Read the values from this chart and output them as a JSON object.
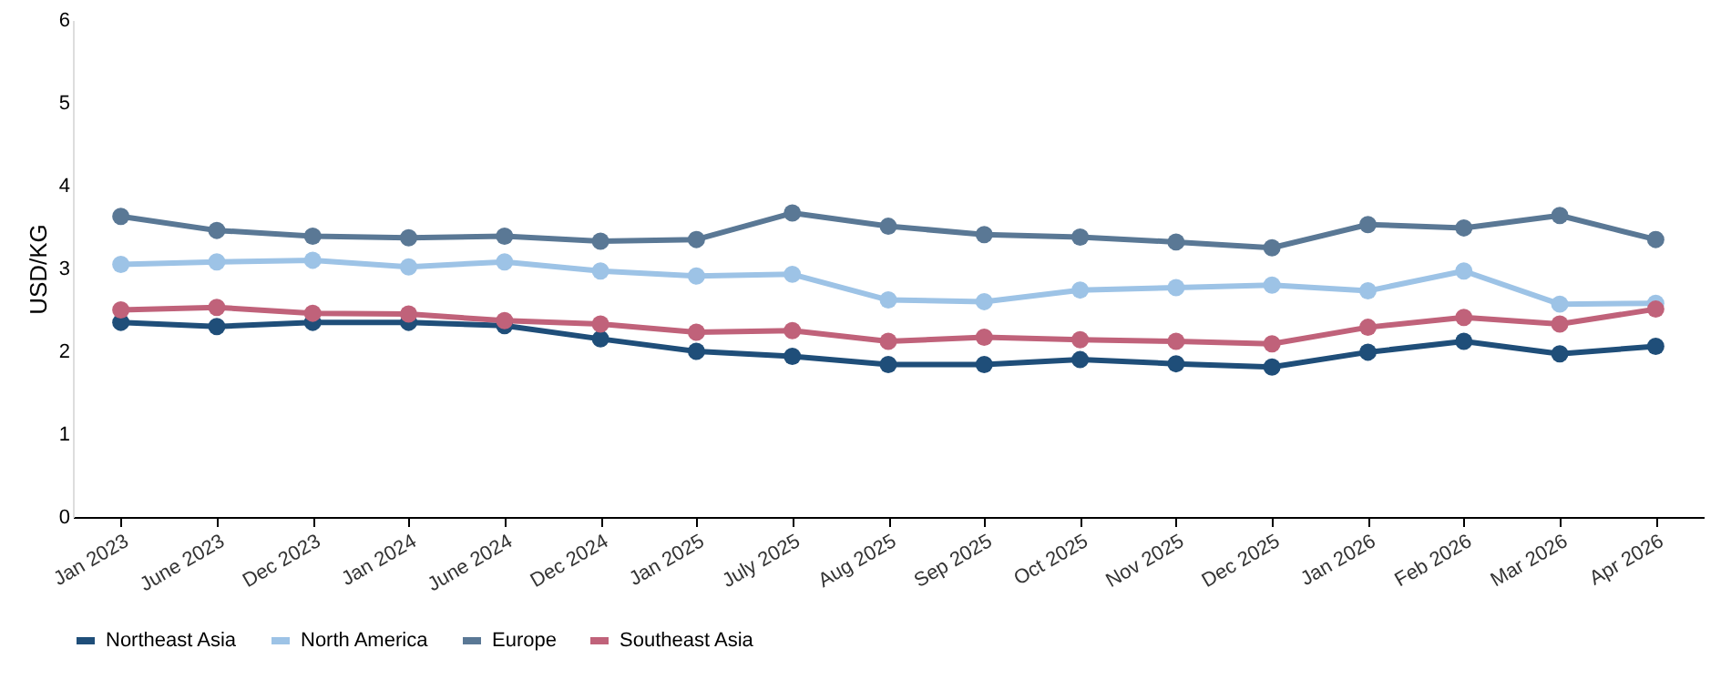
{
  "chart_data": {
    "type": "line",
    "ylabel": "USD/KG",
    "categories": [
      "Jan 2023",
      "June 2023",
      "Dec 2023",
      "Jan 2024",
      "June 2024",
      "Dec 2024",
      "Jan 2025",
      "July 2025",
      "Aug 2025",
      "Sep 2025",
      "Oct 2025",
      "Nov 2025",
      "Dec 2025",
      "Jan 2026",
      "Feb 2026",
      "Mar 2026",
      "Apr 2026"
    ],
    "series": [
      {
        "name": "Northeast Asia",
        "color": "#1f4e79",
        "values": [
          2.35,
          2.3,
          2.35,
          2.35,
          2.31,
          2.15,
          2.0,
          1.94,
          1.84,
          1.84,
          1.9,
          1.85,
          1.81,
          1.99,
          2.12,
          1.97,
          2.06
        ]
      },
      {
        "name": "North America",
        "color": "#9dc3e6",
        "values": [
          3.05,
          3.08,
          3.1,
          3.02,
          3.08,
          2.97,
          2.91,
          2.93,
          2.62,
          2.6,
          2.74,
          2.77,
          2.8,
          2.73,
          2.97,
          2.57,
          2.58
        ]
      },
      {
        "name": "Europe",
        "color": "#5a7895",
        "values": [
          3.63,
          3.46,
          3.39,
          3.37,
          3.39,
          3.33,
          3.35,
          3.67,
          3.51,
          3.41,
          3.38,
          3.32,
          3.25,
          3.53,
          3.49,
          3.64,
          3.35
        ]
      },
      {
        "name": "Southeast Asia",
        "color": "#c0627a",
        "values": [
          2.5,
          2.53,
          2.46,
          2.45,
          2.37,
          2.33,
          2.23,
          2.25,
          2.12,
          2.17,
          2.14,
          2.12,
          2.09,
          2.29,
          2.41,
          2.33,
          2.51
        ]
      }
    ],
    "ylim": [
      0,
      6
    ],
    "yticks": [
      0,
      1,
      2,
      3,
      4,
      5,
      6
    ],
    "grid": false,
    "legend": "bottom",
    "marker": "circle",
    "line_style": "solid"
  }
}
